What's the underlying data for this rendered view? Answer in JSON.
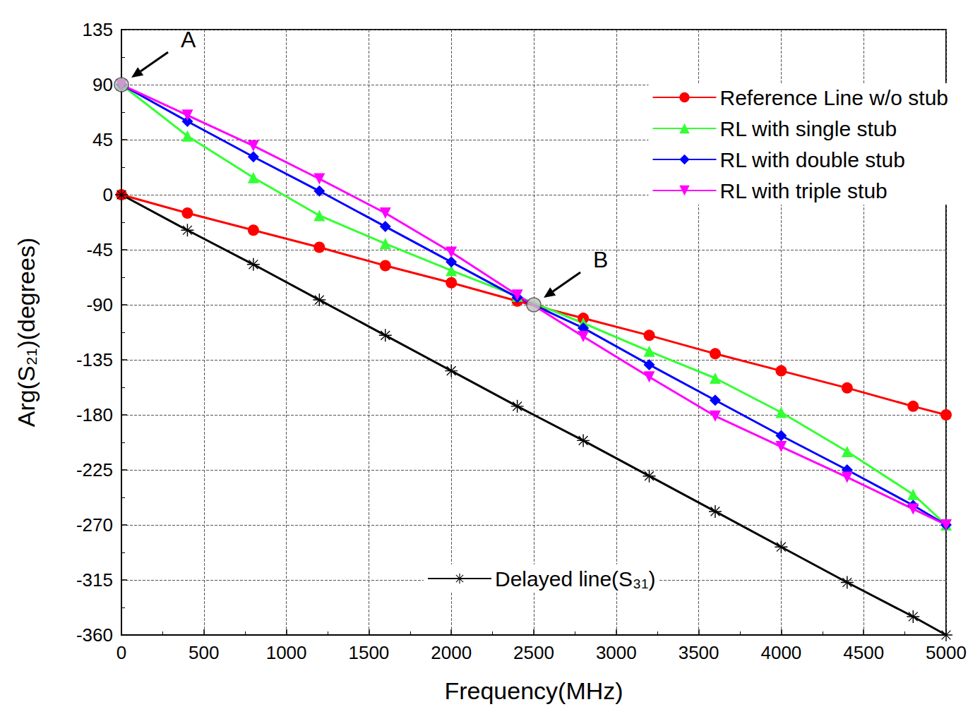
{
  "chart_data": {
    "type": "line",
    "x_label": "Frequency(MHz)",
    "y_label": "Arg(S₂₁)(degrees)",
    "xlim": [
      0,
      5000
    ],
    "xticks": [
      0,
      500,
      1000,
      1500,
      2000,
      2500,
      3000,
      3500,
      4000,
      4500,
      5000
    ],
    "ylim": [
      -360,
      135
    ],
    "yticks": [
      -360,
      -315,
      -270,
      -225,
      -180,
      -135,
      -90,
      -45,
      0,
      45,
      90,
      135
    ],
    "grid": true,
    "legend": "upper right",
    "series": [
      {
        "name": "Reference Line w/o stub",
        "color": "#ff0000",
        "marker": "circle",
        "x": [
          0,
          400,
          800,
          1200,
          1600,
          2000,
          2400,
          2800,
          3200,
          3600,
          4000,
          4400,
          4800,
          5000
        ],
        "values": [
          0,
          -15,
          -29,
          -43,
          -58,
          -72,
          -87,
          -101,
          -115,
          -130,
          -144,
          -158,
          -173,
          -180
        ]
      },
      {
        "name": "RL with single stub",
        "color": "#33ff33",
        "marker": "triangle",
        "x": [
          0,
          400,
          800,
          1200,
          1600,
          2000,
          2400,
          2800,
          3200,
          3600,
          4000,
          4400,
          4800,
          5000
        ],
        "values": [
          90,
          48,
          14,
          -17,
          -40,
          -62,
          -83,
          -105,
          -128,
          -150,
          -178,
          -210,
          -245,
          -270
        ]
      },
      {
        "name": "RL with double stub",
        "color": "#0000ff",
        "marker": "diamond",
        "x": [
          0,
          400,
          800,
          1200,
          1600,
          2000,
          2400,
          2800,
          3200,
          3600,
          4000,
          4400,
          4800,
          5000
        ],
        "values": [
          90,
          60,
          31,
          3,
          -26,
          -55,
          -84,
          -109,
          -139,
          -168,
          -197,
          -225,
          -254,
          -270
        ]
      },
      {
        "name": "RL with triple stub",
        "color": "#ff00ff",
        "marker": "triangle-down",
        "x": [
          0,
          400,
          800,
          1200,
          1600,
          2000,
          2400,
          2800,
          3200,
          3600,
          4000,
          4400,
          4800,
          5000
        ],
        "values": [
          90,
          65,
          40,
          13,
          -15,
          -47,
          -82,
          -116,
          -149,
          -181,
          -206,
          -231,
          -257,
          -270
        ]
      },
      {
        "name": "Delayed line(S₃₁)",
        "color": "#000000",
        "marker": "asterisk",
        "x": [
          0,
          400,
          800,
          1200,
          1600,
          2000,
          2400,
          2800,
          3200,
          3600,
          4000,
          4400,
          4800,
          5000
        ],
        "values": [
          0,
          -29,
          -57,
          -86,
          -115,
          -144,
          -173,
          -201,
          -230,
          -259,
          -288,
          -317,
          -345,
          -360
        ]
      }
    ],
    "annotations": [
      {
        "text": "A",
        "x": 0,
        "y": 90
      },
      {
        "text": "B",
        "x": 2500,
        "y": -90
      }
    ]
  }
}
